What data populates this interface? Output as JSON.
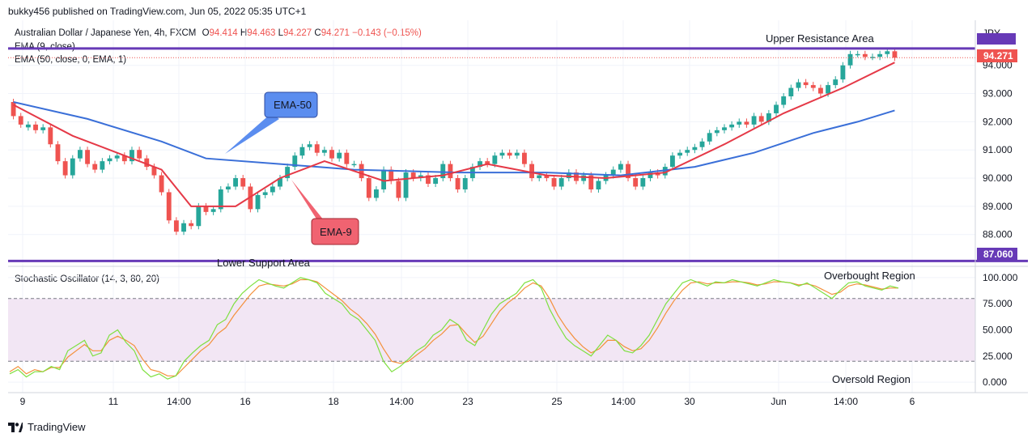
{
  "header": {
    "publisher_line": "bukky456 published on TradingView.com, Jun 05, 2022 05:35 UTC+1"
  },
  "symbol": {
    "name": "Australian Dollar / Japanese Yen, 4h, FXCM",
    "open_label": "O",
    "open": "94.414",
    "high_label": "H",
    "high": "94.463",
    "low_label": "L",
    "low": "94.227",
    "close_label": "C",
    "close": "94.271",
    "change": "−0.143 (−0.15%)"
  },
  "indicators": {
    "ema9_label": "EMA (9, close)",
    "ema50_label": "EMA (50, close, 0, EMA, 1)",
    "stoch_label": "Stochastic Oscillator (14, 3, 80, 20)"
  },
  "annotations": {
    "upper": "Upper Resistance Area",
    "lower": "Lower Support Area",
    "ema50_callout": "EMA-50",
    "ema9_callout": "EMA-9",
    "overbought": "Overbought Region",
    "oversold": "Oversold Region"
  },
  "footer": {
    "brand": "TradingView"
  },
  "colors": {
    "up": "#26a69a",
    "down": "#ef5350",
    "ema9": "#e53947",
    "ema50": "#3a6fd8",
    "level": "#673ab7",
    "stoch_k": "#7ee040",
    "stoch_d": "#f4903b",
    "stoch_band": "#f2e6f4",
    "callout_blue": "#5b8def",
    "callout_red": "#f06371"
  },
  "chart_data": [
    {
      "type": "candlestick",
      "currency": "JPY",
      "y_ticks": [
        "88.000",
        "89.000",
        "90.000",
        "91.000",
        "92.000",
        "93.000",
        "94.000"
      ],
      "ylim": [
        86.9,
        95.6
      ],
      "x_ticks": [
        "9",
        "11",
        "14:00",
        "16",
        "18",
        "14:00",
        "23",
        "25",
        "14:00",
        "30",
        "Jun",
        "14:00",
        "6"
      ],
      "levels": {
        "upper_resistance": 94.6,
        "lower_support": "87.060"
      },
      "last_price_badge": "94.271",
      "candles": [
        [
          92.7,
          92.2
        ],
        [
          92.2,
          91.9
        ],
        [
          91.8,
          91.9
        ],
        [
          91.9,
          91.7
        ],
        [
          91.7,
          91.8
        ],
        [
          91.8,
          91.2
        ],
        [
          91.2,
          90.6
        ],
        [
          90.6,
          90.1
        ],
        [
          90.1,
          90.7
        ],
        [
          90.7,
          91.0
        ],
        [
          91.0,
          90.5
        ],
        [
          90.5,
          90.3
        ],
        [
          90.3,
          90.6
        ],
        [
          90.6,
          90.7
        ],
        [
          90.7,
          90.8
        ],
        [
          90.8,
          90.6
        ],
        [
          90.6,
          91.0
        ],
        [
          91.0,
          90.7
        ],
        [
          90.7,
          90.4
        ],
        [
          90.4,
          90.1
        ],
        [
          90.1,
          89.5
        ],
        [
          89.5,
          88.5
        ],
        [
          88.5,
          88.1
        ],
        [
          88.1,
          88.4
        ],
        [
          88.4,
          88.3
        ],
        [
          88.3,
          89.0
        ],
        [
          89.0,
          88.8
        ],
        [
          88.8,
          88.9
        ],
        [
          88.9,
          89.6
        ],
        [
          89.6,
          89.7
        ],
        [
          89.7,
          90.0
        ],
        [
          90.0,
          89.7
        ],
        [
          89.7,
          88.9
        ],
        [
          88.9,
          89.4
        ],
        [
          89.4,
          89.5
        ],
        [
          89.5,
          89.7
        ],
        [
          89.7,
          90.0
        ],
        [
          90.0,
          90.4
        ],
        [
          90.4,
          90.8
        ],
        [
          90.8,
          91.1
        ],
        [
          91.1,
          91.2
        ],
        [
          91.2,
          90.9
        ],
        [
          90.9,
          91.0
        ],
        [
          91.0,
          90.7
        ],
        [
          90.7,
          90.9
        ],
        [
          90.9,
          90.5
        ],
        [
          90.5,
          90.5
        ],
        [
          90.5,
          90.0
        ],
        [
          90.0,
          89.3
        ],
        [
          89.3,
          89.6
        ],
        [
          89.6,
          90.3
        ],
        [
          90.3,
          89.9
        ],
        [
          89.9,
          89.3
        ],
        [
          89.3,
          90.2
        ],
        [
          90.2,
          90.0
        ],
        [
          90.0,
          90.1
        ],
        [
          90.1,
          89.8
        ],
        [
          89.8,
          90.0
        ],
        [
          90.0,
          90.5
        ],
        [
          90.5,
          90.0
        ],
        [
          90.0,
          89.6
        ],
        [
          89.6,
          90.0
        ],
        [
          90.0,
          90.4
        ],
        [
          90.4,
          90.6
        ],
        [
          90.6,
          90.5
        ],
        [
          90.5,
          90.8
        ],
        [
          90.8,
          90.9
        ],
        [
          90.9,
          90.8
        ],
        [
          90.8,
          90.9
        ],
        [
          90.9,
          90.5
        ],
        [
          90.5,
          90.0
        ],
        [
          90.0,
          90.1
        ],
        [
          90.1,
          90.0
        ],
        [
          90.0,
          89.7
        ],
        [
          89.7,
          90.0
        ],
        [
          90.0,
          90.2
        ],
        [
          90.2,
          89.9
        ],
        [
          89.9,
          90.1
        ],
        [
          90.1,
          89.6
        ],
        [
          89.6,
          89.9
        ],
        [
          89.9,
          90.1
        ],
        [
          90.1,
          90.3
        ],
        [
          90.3,
          90.5
        ],
        [
          90.5,
          90.0
        ],
        [
          90.0,
          89.7
        ],
        [
          89.7,
          90.0
        ],
        [
          90.0,
          90.2
        ],
        [
          90.2,
          90.1
        ],
        [
          90.1,
          90.4
        ],
        [
          90.4,
          90.8
        ],
        [
          90.8,
          90.9
        ],
        [
          90.9,
          91.0
        ],
        [
          91.0,
          91.1
        ],
        [
          91.1,
          91.3
        ],
        [
          91.3,
          91.6
        ],
        [
          91.6,
          91.7
        ],
        [
          91.7,
          91.8
        ],
        [
          91.8,
          91.9
        ],
        [
          91.9,
          92.0
        ],
        [
          92.0,
          91.9
        ],
        [
          91.9,
          92.2
        ],
        [
          92.2,
          92.0
        ],
        [
          92.0,
          92.3
        ],
        [
          92.3,
          92.6
        ],
        [
          92.6,
          92.9
        ],
        [
          92.9,
          93.2
        ],
        [
          93.2,
          93.4
        ],
        [
          93.4,
          93.3
        ],
        [
          93.3,
          93.2
        ],
        [
          93.2,
          93.0
        ],
        [
          93.0,
          93.3
        ],
        [
          93.3,
          93.5
        ],
        [
          93.5,
          94.0
        ],
        [
          94.0,
          94.4
        ],
        [
          94.4,
          94.4
        ],
        [
          94.4,
          94.3
        ],
        [
          94.3,
          94.3
        ],
        [
          94.3,
          94.4
        ],
        [
          94.4,
          94.5
        ],
        [
          94.5,
          94.27
        ]
      ],
      "ema9": [
        [
          0,
          92.6
        ],
        [
          8,
          91.5
        ],
        [
          15,
          90.8
        ],
        [
          20,
          90.3
        ],
        [
          24,
          89.0
        ],
        [
          30,
          89.0
        ],
        [
          36,
          90.0
        ],
        [
          42,
          90.6
        ],
        [
          50,
          89.9
        ],
        [
          58,
          90.1
        ],
        [
          64,
          90.5
        ],
        [
          72,
          90.1
        ],
        [
          80,
          90.0
        ],
        [
          88,
          90.2
        ],
        [
          96,
          91.2
        ],
        [
          104,
          92.3
        ],
        [
          112,
          93.2
        ],
        [
          119,
          94.1
        ]
      ],
      "ema50": [
        [
          0,
          92.7
        ],
        [
          10,
          92.1
        ],
        [
          20,
          91.3
        ],
        [
          26,
          90.7
        ],
        [
          36,
          90.5
        ],
        [
          46,
          90.3
        ],
        [
          60,
          90.2
        ],
        [
          72,
          90.2
        ],
        [
          82,
          90.1
        ],
        [
          92,
          90.4
        ],
        [
          100,
          90.9
        ],
        [
          108,
          91.6
        ],
        [
          114,
          92.0
        ],
        [
          119,
          92.4
        ]
      ]
    },
    {
      "type": "line",
      "name": "Stochastic Oscillator",
      "y_ticks": [
        "0.000",
        "25.000",
        "50.000",
        "75.000",
        "100.000"
      ],
      "ylim": [
        -10,
        110
      ],
      "bands": {
        "overbought": 80,
        "oversold": 20
      },
      "series": [
        {
          "values": [
            8,
            12,
            5,
            10,
            10,
            15,
            12,
            30,
            35,
            40,
            25,
            28,
            45,
            50,
            38,
            30,
            12,
            5,
            8,
            3,
            6,
            20,
            28,
            35,
            40,
            55,
            60,
            75,
            85,
            92,
            98,
            95,
            92,
            90,
            95,
            100,
            98,
            95,
            85,
            80,
            75,
            65,
            60,
            50,
            40,
            20,
            10,
            15,
            22,
            30,
            35,
            45,
            50,
            60,
            55,
            40,
            35,
            50,
            65,
            75,
            80,
            85,
            95,
            98,
            90,
            70,
            55,
            42,
            35,
            30,
            25,
            35,
            45,
            40,
            30,
            28,
            35,
            45,
            60,
            75,
            85,
            95,
            98,
            95,
            92,
            96,
            95,
            98,
            96,
            94,
            92,
            95,
            98,
            96,
            95,
            92,
            95,
            90,
            85,
            80,
            88,
            95,
            96,
            92,
            90,
            88,
            92,
            90
          ]
        },
        {
          "values": [
            10,
            15,
            8,
            12,
            10,
            14,
            14,
            24,
            30,
            36,
            30,
            30,
            40,
            44,
            40,
            35,
            22,
            12,
            10,
            6,
            6,
            14,
            22,
            30,
            36,
            46,
            52,
            64,
            74,
            84,
            92,
            94,
            93,
            92,
            94,
            98,
            98,
            96,
            90,
            84,
            78,
            70,
            64,
            56,
            46,
            32,
            20,
            18,
            20,
            26,
            32,
            40,
            46,
            54,
            55,
            46,
            38,
            44,
            56,
            68,
            76,
            82,
            90,
            95,
            92,
            80,
            64,
            52,
            42,
            34,
            28,
            32,
            40,
            40,
            34,
            30,
            32,
            40,
            52,
            66,
            78,
            88,
            95,
            96,
            94,
            95,
            95,
            96,
            96,
            95,
            93,
            94,
            96,
            96,
            95,
            93,
            94,
            92,
            88,
            84,
            86,
            92,
            94,
            93,
            91,
            89,
            90,
            90
          ]
        }
      ]
    }
  ]
}
